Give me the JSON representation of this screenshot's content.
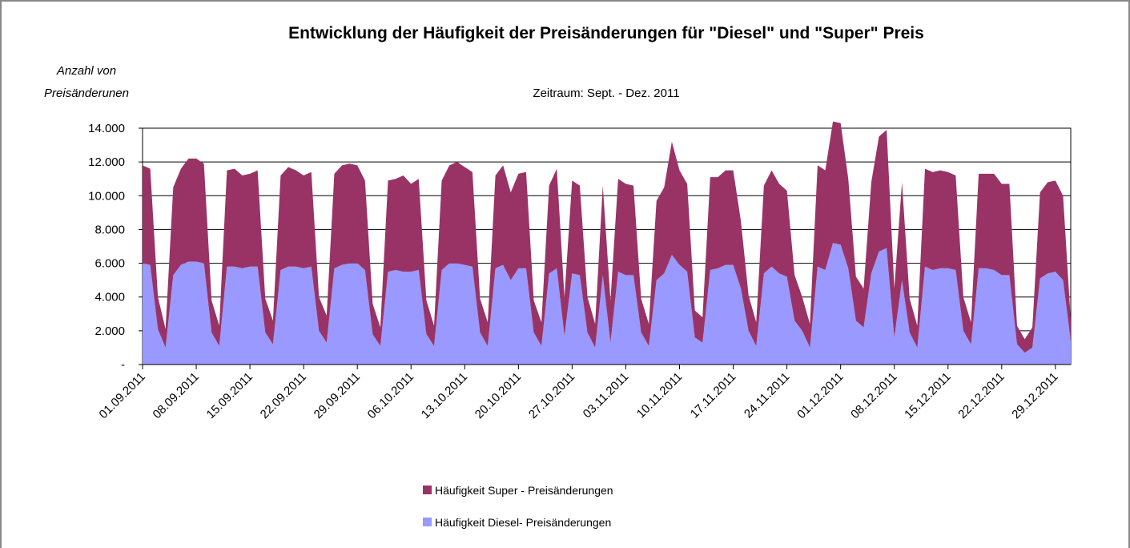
{
  "chart_data": {
    "type": "stacked_area",
    "title": "Entwicklung der Häufigkeit der Preisänderungen für \"Diesel\" und \"Super\" Preis",
    "subtitle": "Zeitraum: Sept. - Dez. 2011",
    "y_label": [
      "Anzahl von",
      "Preisänderunen"
    ],
    "categories": [
      "01.09.2011",
      null,
      null,
      null,
      null,
      null,
      null,
      "08.09.2011",
      null,
      null,
      null,
      null,
      null,
      null,
      "15.09.2011",
      null,
      null,
      null,
      null,
      null,
      null,
      "22.09.2011",
      null,
      null,
      null,
      null,
      null,
      null,
      "29.09.2011",
      null,
      null,
      null,
      null,
      null,
      null,
      "06.10.2011",
      null,
      null,
      null,
      null,
      null,
      null,
      "13.10.2011",
      null,
      null,
      null,
      null,
      null,
      null,
      "20.10.2011",
      null,
      null,
      null,
      null,
      null,
      null,
      "27.10.2011",
      null,
      null,
      null,
      null,
      null,
      null,
      "03.11.2011",
      null,
      null,
      null,
      null,
      null,
      null,
      "10.11.2011",
      null,
      null,
      null,
      null,
      null,
      null,
      "17.11.2011",
      null,
      null,
      null,
      null,
      null,
      null,
      "24.11.2011",
      null,
      null,
      null,
      null,
      null,
      null,
      "01.12.2011",
      null,
      null,
      null,
      null,
      null,
      null,
      "08.12.2011",
      null,
      null,
      null,
      null,
      null,
      null,
      "15.12.2011",
      null,
      null,
      null,
      null,
      null,
      null,
      "22.12.2011",
      null,
      null,
      null,
      null,
      null,
      null,
      "29.12.2011",
      null,
      null
    ],
    "series": [
      {
        "name": "Häufigkeit Diesel- Preisänderungen",
        "color": "#9999ff",
        "values": [
          6000,
          5900,
          2100,
          1000,
          5300,
          5900,
          6100,
          6100,
          6000,
          1900,
          1100,
          5800,
          5800,
          5700,
          5800,
          5800,
          1900,
          1200,
          5600,
          5800,
          5800,
          5700,
          5800,
          2000,
          1300,
          5700,
          5900,
          6000,
          6000,
          5600,
          1800,
          1100,
          5500,
          5600,
          5500,
          5500,
          5600,
          1800,
          1100,
          5600,
          6000,
          6000,
          5900,
          5800,
          1900,
          1100,
          5700,
          5900,
          5000,
          5700,
          5700,
          1900,
          1100,
          5400,
          5700,
          1700,
          5400,
          5300,
          1900,
          1000,
          5300,
          1300,
          5500,
          5300,
          5300,
          1900,
          1100,
          5000,
          5400,
          6500,
          5900,
          5500,
          1600,
          1300,
          5600,
          5700,
          5900,
          5900,
          4500,
          2000,
          1100,
          5400,
          5800,
          5400,
          5200,
          2600,
          2000,
          1000,
          5800,
          5600,
          7200,
          7100,
          5700,
          2600,
          2200,
          5400,
          6700,
          6900,
          1600,
          5000,
          1900,
          1000,
          5800,
          5600,
          5700,
          5700,
          5600,
          2000,
          1200,
          5700,
          5700,
          5600,
          5300,
          5300,
          1200,
          700,
          1000,
          5100,
          5400,
          5500,
          5000,
          1400
        ]
      },
      {
        "name": "Häufigkeit Super - Preisänderungen",
        "color": "#993366",
        "values": [
          5800,
          5700,
          1900,
          1100,
          5200,
          5700,
          6100,
          6100,
          5900,
          1900,
          1200,
          5700,
          5800,
          5500,
          5500,
          5700,
          2000,
          1400,
          5600,
          5900,
          5700,
          5500,
          5600,
          2000,
          1600,
          5600,
          5900,
          5900,
          5800,
          5300,
          1800,
          1100,
          5400,
          5400,
          5700,
          5200,
          5400,
          2000,
          1200,
          5300,
          5800,
          6000,
          5800,
          5600,
          2000,
          1400,
          5500,
          5900,
          5200,
          5600,
          5700,
          1900,
          1400,
          5200,
          5900,
          2300,
          5500,
          5300,
          2100,
          1400,
          5300,
          2500,
          5500,
          5400,
          5300,
          2000,
          1300,
          4700,
          5100,
          6700,
          5600,
          5200,
          1600,
          1500,
          5500,
          5400,
          5600,
          5600,
          4000,
          2100,
          1400,
          5200,
          5700,
          5300,
          5100,
          2700,
          2000,
          1400,
          6000,
          5900,
          7200,
          7200,
          5300,
          2600,
          2300,
          5400,
          6800,
          7000,
          2900,
          5800,
          2000,
          1300,
          5800,
          5800,
          5800,
          5700,
          5600,
          2000,
          1300,
          5600,
          5600,
          5700,
          5400,
          5400,
          1100,
          800,
          1200,
          5100,
          5400,
          5400,
          5000,
          1200
        ]
      }
    ],
    "ylim": [
      0,
      14000
    ],
    "yticks": [
      {
        "value": 0,
        "label": "-"
      },
      {
        "value": 2000,
        "label": "2.000"
      },
      {
        "value": 4000,
        "label": "4.000"
      },
      {
        "value": 6000,
        "label": "6.000"
      },
      {
        "value": 8000,
        "label": "8.000"
      },
      {
        "value": 10000,
        "label": "10.000"
      },
      {
        "value": 12000,
        "label": "12.000"
      },
      {
        "value": 14000,
        "label": "14.000"
      }
    ],
    "grid": true
  }
}
